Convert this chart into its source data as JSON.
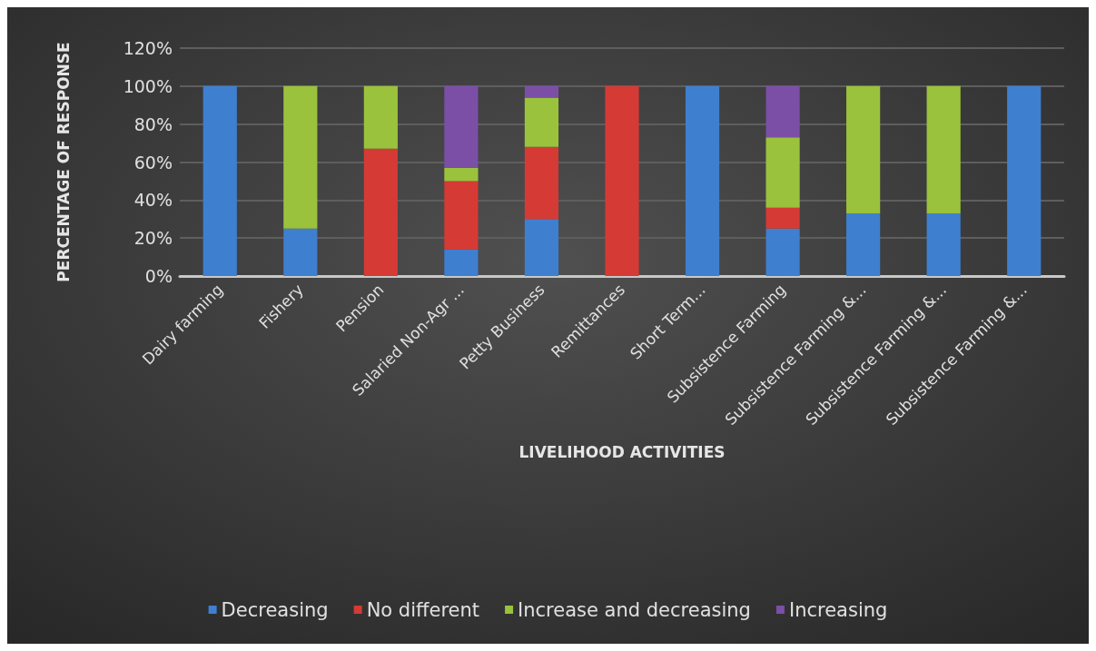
{
  "chart_data": {
    "type": "bar",
    "stacked": true,
    "xlabel": "LIVELIHOOD ACTIVITIES",
    "ylabel": "PERCENTAGE OF RESPONSE",
    "categories": [
      "Dairy farming",
      "Fishery",
      "Pension",
      "Salaried Non-Agr ...",
      "Petty Business",
      "Remittances",
      "Short Term...",
      "Subsistence Farming",
      "Subsistence Farming &...",
      "Subsistence Farming &...",
      "Subsistence Farming &..."
    ],
    "series": [
      {
        "name": "Decreasing",
        "color": "#3f7fd0",
        "values": [
          100,
          25,
          0,
          14,
          30,
          0,
          100,
          25,
          33,
          33,
          100
        ]
      },
      {
        "name": "No different",
        "color": "#d63a35",
        "values": [
          0,
          0,
          67,
          36,
          38,
          100,
          0,
          11,
          0,
          0,
          0
        ]
      },
      {
        "name": "Increase and decreasing",
        "color": "#9bc23c",
        "values": [
          0,
          75,
          33,
          7,
          26,
          0,
          0,
          37,
          67,
          67,
          0
        ]
      },
      {
        "name": "Increasing",
        "color": "#7b4fa6",
        "values": [
          0,
          0,
          0,
          43,
          6,
          0,
          0,
          27,
          0,
          0,
          0
        ]
      }
    ],
    "ylim": [
      0,
      120
    ],
    "yticks": [
      {
        "value": 0,
        "label": "0%"
      },
      {
        "value": 20,
        "label": "20%"
      },
      {
        "value": 40,
        "label": "40%"
      },
      {
        "value": 60,
        "label": "60%"
      },
      {
        "value": 80,
        "label": "80%"
      },
      {
        "value": 100,
        "label": "100%"
      },
      {
        "value": 120,
        "label": "120%"
      }
    ],
    "grid": "y",
    "legend": "bottom"
  }
}
